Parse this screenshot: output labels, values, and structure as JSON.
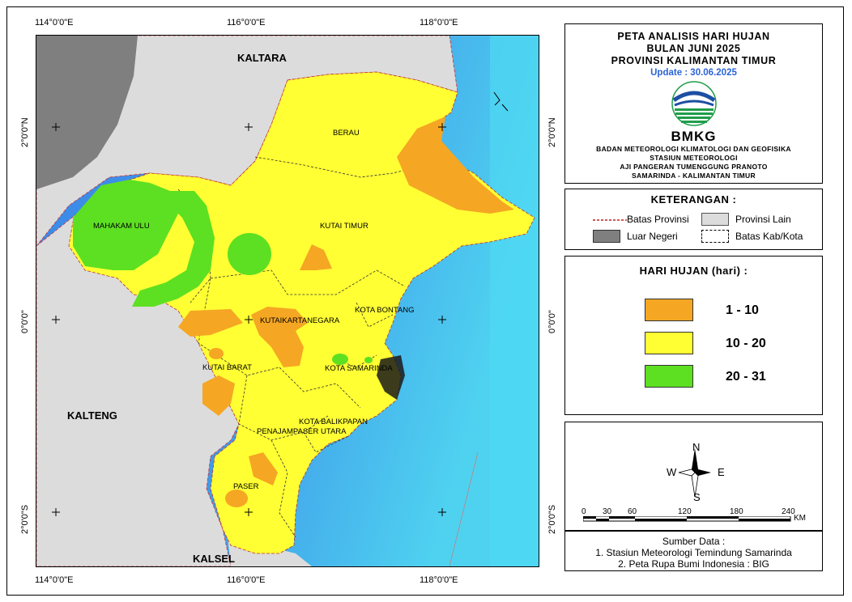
{
  "map": {
    "title_lines": [
      "PETA ANALISIS HARI HUJAN",
      "BULAN JUNI 2025",
      "PROVINSI KALIMANTAN TIMUR"
    ],
    "update": "Update : 30.06.2025",
    "logo_text": "BMKG",
    "org_lines": [
      "BADAN METEOROLOGI KLIMATOLOGI DAN GEOFISIKA",
      "STASIUN METEOROLOGI",
      "AJI PANGERAN TUMENGGUNG PRANOTO",
      "SAMARINDA - KALIMANTAN TIMUR"
    ],
    "coords": {
      "top": [
        "114°0'0\"E",
        "116°0'0\"E",
        "118°0'0\"E"
      ],
      "bottom": [
        "114°0'0\"E",
        "116°0'0\"E",
        "118°0'0\"E"
      ],
      "left": [
        "2°0'0\"N",
        "0°0'0\"",
        "2°0'0\"S"
      ],
      "right": [
        "2°0'0\"N",
        "0°0'0\"",
        "2°0'0\"S"
      ]
    },
    "region_labels": {
      "kaltara": "KALTARA",
      "kalteng": "KALTENG",
      "kalsel": "KALSEL",
      "berau": "BERAU",
      "mahakam_ulu": "MAHAKAM ULU",
      "kutai_timur": "KUTAI TIMUR",
      "kota_bontang": "KOTA BONTANG",
      "kutai_kartanegara": "KUTAIKARTANEGARA",
      "kutai_barat": "KUTAI BARAT",
      "kota_samarinda": "KOTA SAMARINDA",
      "kota_balikpapan": "KOTA BALIKPAPAN",
      "penajam_paser_utara": "PENAJAMPASER UTARA",
      "paser": "PASER"
    }
  },
  "legend": {
    "title": "KETERANGAN :",
    "batas_provinsi": "Batas Provinsi",
    "provinsi_lain": "Provinsi Lain",
    "luar_negeri": "Luar Negeri",
    "batas_kab_kota": "Batas Kab/Kota"
  },
  "rain_legend": {
    "title": "HARI HUJAN (hari) :",
    "classes": [
      {
        "label": "1 - 10",
        "color": "#f5a623"
      },
      {
        "label": "10 - 20",
        "color": "#ffff33"
      },
      {
        "label": "20 - 31",
        "color": "#5de021"
      }
    ]
  },
  "compass": {
    "n": "N",
    "s": "S",
    "e": "E",
    "w": "W"
  },
  "scale": {
    "ticks": [
      "0",
      "30",
      "60",
      "120",
      "180",
      "240"
    ],
    "unit": "KM"
  },
  "source": {
    "title": "Sumber Data :",
    "lines": [
      "1. Stasiun Meteorologi Temindung Samarinda",
      "2. Peta Rupa Bumi Indonesia : BIG"
    ]
  },
  "colors": {
    "sea_light": "#4fd2f0",
    "sea_deep": "#3a86e8",
    "other_province": "#dcdcdc",
    "foreign": "#7f7f7f",
    "province_fill": "#ffff33"
  }
}
